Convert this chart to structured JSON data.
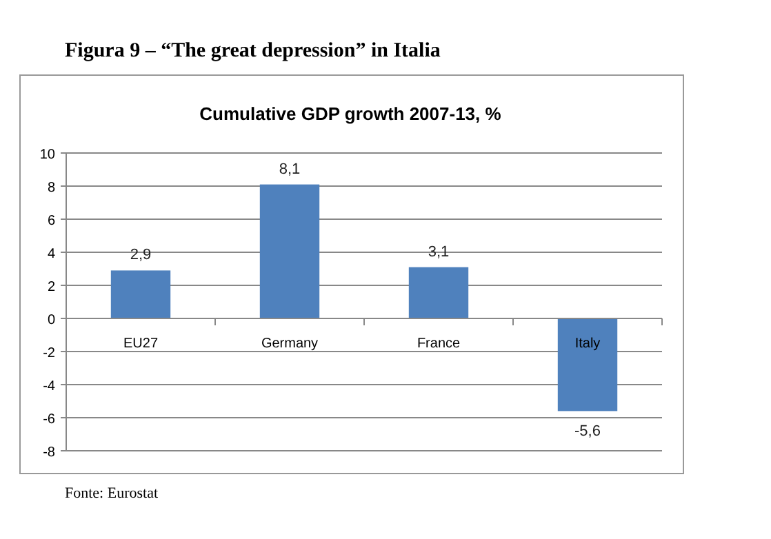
{
  "chart_data": {
    "type": "bar",
    "title": "Figura 9 – “The great depression” in Italia",
    "subtitle": "Cumulative GDP growth 2007-13, %",
    "categories": [
      "EU27",
      "Germany",
      "France",
      "Italy"
    ],
    "values": [
      2.9,
      8.1,
      3.1,
      -5.6
    ],
    "value_labels": [
      "2,9",
      "8,1",
      "3,1",
      "-5,6"
    ],
    "color": "#4f81bd",
    "ylim": [
      -8,
      10
    ],
    "yticks": [
      -8,
      -6,
      -4,
      -2,
      0,
      2,
      4,
      6,
      8,
      10
    ],
    "grid": "y",
    "annotations": [
      "Fonte: Eurostat"
    ]
  }
}
